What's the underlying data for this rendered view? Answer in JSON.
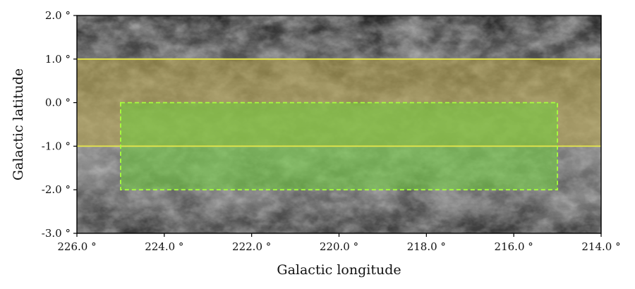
{
  "figure": {
    "xlabel": "Galactic longitude",
    "ylabel": "Galactic latitude",
    "x_ticks": [
      {
        "value": 226,
        "label": "226.0 °"
      },
      {
        "value": 224,
        "label": "224.0 °"
      },
      {
        "value": 222,
        "label": "222.0 °"
      },
      {
        "value": 220,
        "label": "220.0 °"
      },
      {
        "value": 218,
        "label": "218.0 °"
      },
      {
        "value": 216,
        "label": "216.0 °"
      },
      {
        "value": 214,
        "label": "214.0 °"
      }
    ],
    "y_ticks": [
      {
        "value": 2,
        "label": "2.0 °"
      },
      {
        "value": 1,
        "label": "1.0 °"
      },
      {
        "value": 0,
        "label": "0.0 °"
      },
      {
        "value": -1,
        "label": "-1.0 °"
      },
      {
        "value": -2,
        "label": "-2.0 °"
      },
      {
        "value": -3,
        "label": "-3.0 °"
      }
    ],
    "xlim": [
      226,
      214
    ],
    "ylim": [
      -3,
      2
    ],
    "x_reversed": true,
    "background": "grayscale sky emission map",
    "yellow_band": {
      "b_min": -1,
      "b_max": 1,
      "color": "#e8e84a",
      "fill": "#b8a030",
      "line_style": "solid"
    },
    "green_box": {
      "l_min": 215,
      "l_max": 225,
      "b_min": -2,
      "b_max": 0,
      "color": "#a8ff3c",
      "fill": "#6fcf3a",
      "line_style": "dashed"
    }
  }
}
